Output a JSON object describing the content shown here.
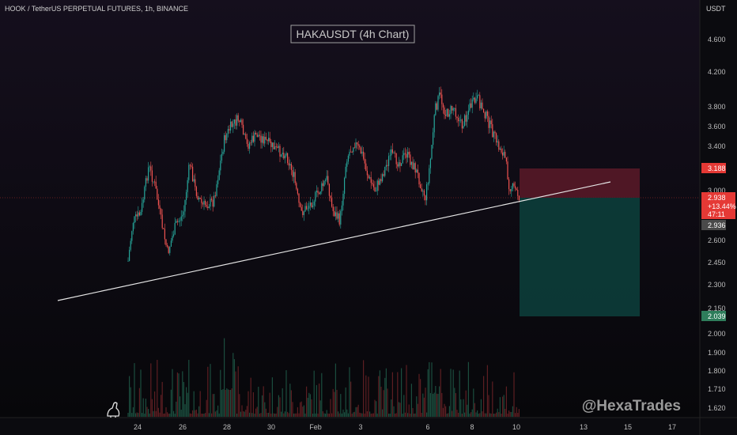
{
  "header": {
    "symbol_line": "HOOK / TetherUS PERPETUAL FUTURES, 1h, BINANCE",
    "title_box": "HAKAUSDT (4h Chart)",
    "currency": "USDT",
    "watermark": "@HexaTrades"
  },
  "price_axis": {
    "ticks": [
      "4.600",
      "4.200",
      "3.800",
      "3.600",
      "3.400",
      "3.000",
      "2.600",
      "2.450",
      "2.300",
      "2.150",
      "2.000",
      "1.900",
      "1.800",
      "1.710",
      "1.620"
    ]
  },
  "time_axis": {
    "ticks": [
      "24",
      "26",
      "28",
      "30",
      "Feb",
      "3",
      "6",
      "8",
      "10",
      "13",
      "15",
      "17"
    ]
  },
  "price_tags": {
    "stop": "3.188",
    "current_price": "2.938",
    "current_change": "+13.44%",
    "current_countdown": "47:11",
    "entry": "2.936",
    "target": "2.039"
  },
  "colors": {
    "background": "#0b0b0f",
    "up": "#26a69a",
    "down": "#ef5350",
    "volume_up": "#1b4d3e",
    "volume_down": "#5c1e22",
    "stop_zone": "#5a1a28",
    "target_zone": "#0c3d3a",
    "trendline": "#e6e6e6",
    "tag_red": "#e53935",
    "tag_green": "#2e7d5b",
    "tag_gray": "#4a4a4a"
  },
  "icons": {
    "logo": "dinosaur-icon"
  }
}
